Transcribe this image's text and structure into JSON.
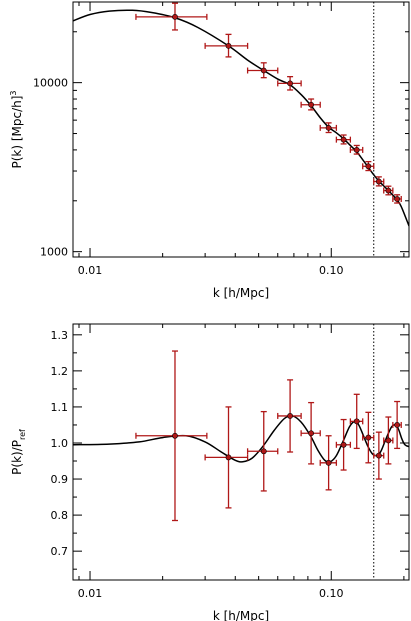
{
  "colors": {
    "data": "#b01818",
    "model": "#000000",
    "frame": "#000000"
  },
  "chart_data": [
    {
      "type": "scatter",
      "panel": "top",
      "xscale": "log",
      "yscale": "log",
      "xlim": [
        0.0085,
        0.21
      ],
      "ylim": [
        930,
        30000
      ],
      "xlabel": "k [h/Mpc]",
      "ylabel_main": "P(k) [Mpc/h]",
      "ylabel_sup": "3",
      "xticks": [
        0.01,
        0.1
      ],
      "xtick_labels": [
        "0.01",
        "0.10"
      ],
      "yticks": [
        1000,
        10000
      ],
      "ytick_labels": [
        "1000",
        "10000"
      ],
      "cut_line_x": 0.15,
      "points": [
        {
          "k": 0.0225,
          "kerr": [
            0.007,
            0.008
          ],
          "p": 24500,
          "perr": [
            4000,
            5000
          ]
        },
        {
          "k": 0.0375,
          "kerr": [
            0.0075,
            0.0075
          ],
          "p": 16500,
          "perr": [
            2300,
            2800
          ]
        },
        {
          "k": 0.0525,
          "kerr": [
            0.0075,
            0.0075
          ],
          "p": 11800,
          "perr": [
            1100,
            1300
          ]
        },
        {
          "k": 0.0675,
          "kerr": [
            0.0075,
            0.0075
          ],
          "p": 9900,
          "perr": [
            850,
            950
          ]
        },
        {
          "k": 0.0825,
          "kerr": [
            0.0075,
            0.0075
          ],
          "p": 7400,
          "perr": [
            500,
            600
          ]
        },
        {
          "k": 0.0975,
          "kerr": [
            0.0075,
            0.0075
          ],
          "p": 5400,
          "perr": [
            330,
            380
          ]
        },
        {
          "k": 0.1125,
          "kerr": [
            0.0075,
            0.0075
          ],
          "p": 4600,
          "perr": [
            260,
            300
          ]
        },
        {
          "k": 0.1275,
          "kerr": [
            0.0075,
            0.0075
          ],
          "p": 4000,
          "perr": [
            220,
            250
          ]
        },
        {
          "k": 0.1425,
          "kerr": [
            0.0075,
            0.0075
          ],
          "p": 3200,
          "perr": [
            180,
            210
          ]
        },
        {
          "k": 0.1575,
          "kerr": [
            0.0075,
            0.0075
          ],
          "p": 2600,
          "perr": [
            150,
            170
          ]
        },
        {
          "k": 0.1725,
          "kerr": [
            0.0075,
            0.0075
          ],
          "p": 2300,
          "perr": [
            130,
            140
          ]
        },
        {
          "k": 0.1875,
          "kerr": [
            0.0075,
            0.0075
          ],
          "p": 2050,
          "perr": [
            110,
            120
          ]
        }
      ],
      "model": {
        "k": [
          0.0085,
          0.01,
          0.012,
          0.015,
          0.018,
          0.0225,
          0.028,
          0.0375,
          0.045,
          0.0525,
          0.06,
          0.0675,
          0.075,
          0.0825,
          0.09,
          0.0975,
          0.105,
          0.1125,
          0.12,
          0.1275,
          0.135,
          0.1425,
          0.15,
          0.1575,
          0.165,
          0.1725,
          0.18,
          0.1875,
          0.195,
          0.21
        ],
        "p": [
          23200,
          25300,
          26500,
          26800,
          26000,
          24200,
          21200,
          16500,
          13600,
          11800,
          10500,
          9700,
          8500,
          7300,
          6200,
          5450,
          5050,
          4650,
          4250,
          3900,
          3500,
          3150,
          2850,
          2620,
          2450,
          2300,
          2160,
          2020,
          1850,
          1420
        ]
      }
    },
    {
      "type": "scatter",
      "panel": "bottom",
      "xscale": "log",
      "yscale": "linear",
      "xlim": [
        0.0085,
        0.21
      ],
      "ylim": [
        0.62,
        1.33
      ],
      "xlabel": "k [h/Mpc]",
      "ylabel_main": "P(k)/P",
      "ylabel_sub": "ref",
      "xticks": [
        0.01,
        0.1
      ],
      "xtick_labels": [
        "0.01",
        "0.10"
      ],
      "yticks": [
        0.7,
        0.8,
        0.9,
        1.0,
        1.1,
        1.2,
        1.3
      ],
      "ytick_labels": [
        "0.7",
        "0.8",
        "0.9",
        "1.0",
        "1.1",
        "1.2",
        "1.3"
      ],
      "cut_line_x": 0.15,
      "points": [
        {
          "k": 0.0225,
          "kerr": [
            0.007,
            0.008
          ],
          "r": 1.02,
          "rerr": [
            0.235,
            0.235
          ]
        },
        {
          "k": 0.0375,
          "kerr": [
            0.0075,
            0.0075
          ],
          "r": 0.96,
          "rerr": [
            0.14,
            0.14
          ]
        },
        {
          "k": 0.0525,
          "kerr": [
            0.0075,
            0.0075
          ],
          "r": 0.977,
          "rerr": [
            0.11,
            0.11
          ]
        },
        {
          "k": 0.0675,
          "kerr": [
            0.0075,
            0.0075
          ],
          "r": 1.075,
          "rerr": [
            0.1,
            0.1
          ]
        },
        {
          "k": 0.0825,
          "kerr": [
            0.0075,
            0.0075
          ],
          "r": 1.027,
          "rerr": [
            0.085,
            0.085
          ]
        },
        {
          "k": 0.0975,
          "kerr": [
            0.0075,
            0.0075
          ],
          "r": 0.945,
          "rerr": [
            0.075,
            0.075
          ]
        },
        {
          "k": 0.1125,
          "kerr": [
            0.0075,
            0.0075
          ],
          "r": 0.995,
          "rerr": [
            0.07,
            0.07
          ]
        },
        {
          "k": 0.1275,
          "kerr": [
            0.0075,
            0.0075
          ],
          "r": 1.06,
          "rerr": [
            0.075,
            0.075
          ]
        },
        {
          "k": 0.1425,
          "kerr": [
            0.0075,
            0.0075
          ],
          "r": 1.015,
          "rerr": [
            0.07,
            0.07
          ]
        },
        {
          "k": 0.1575,
          "kerr": [
            0.0075,
            0.0075
          ],
          "r": 0.965,
          "rerr": [
            0.065,
            0.065
          ]
        },
        {
          "k": 0.1725,
          "kerr": [
            0.0075,
            0.0075
          ],
          "r": 1.007,
          "rerr": [
            0.065,
            0.065
          ]
        },
        {
          "k": 0.1875,
          "kerr": [
            0.0075,
            0.0075
          ],
          "r": 1.05,
          "rerr": [
            0.065,
            0.065
          ]
        }
      ],
      "model": {
        "k": [
          0.0085,
          0.012,
          0.016,
          0.02,
          0.025,
          0.03,
          0.035,
          0.04,
          0.043,
          0.047,
          0.052,
          0.058,
          0.064,
          0.069,
          0.075,
          0.082,
          0.088,
          0.094,
          0.099,
          0.105,
          0.112,
          0.119,
          0.125,
          0.13,
          0.136,
          0.142,
          0.148,
          0.154,
          0.16,
          0.166,
          0.172,
          0.178,
          0.184,
          0.19,
          0.196,
          0.202,
          0.21
        ],
        "r": [
          0.995,
          0.997,
          1.003,
          1.015,
          1.02,
          1.003,
          0.975,
          0.952,
          0.948,
          0.958,
          0.99,
          1.035,
          1.068,
          1.075,
          1.058,
          1.02,
          0.98,
          0.952,
          0.948,
          0.965,
          1.005,
          1.045,
          1.06,
          1.05,
          1.02,
          0.99,
          0.97,
          0.965,
          0.975,
          1.0,
          1.025,
          1.045,
          1.05,
          1.038,
          1.012,
          0.995,
          0.99
        ]
      }
    }
  ]
}
